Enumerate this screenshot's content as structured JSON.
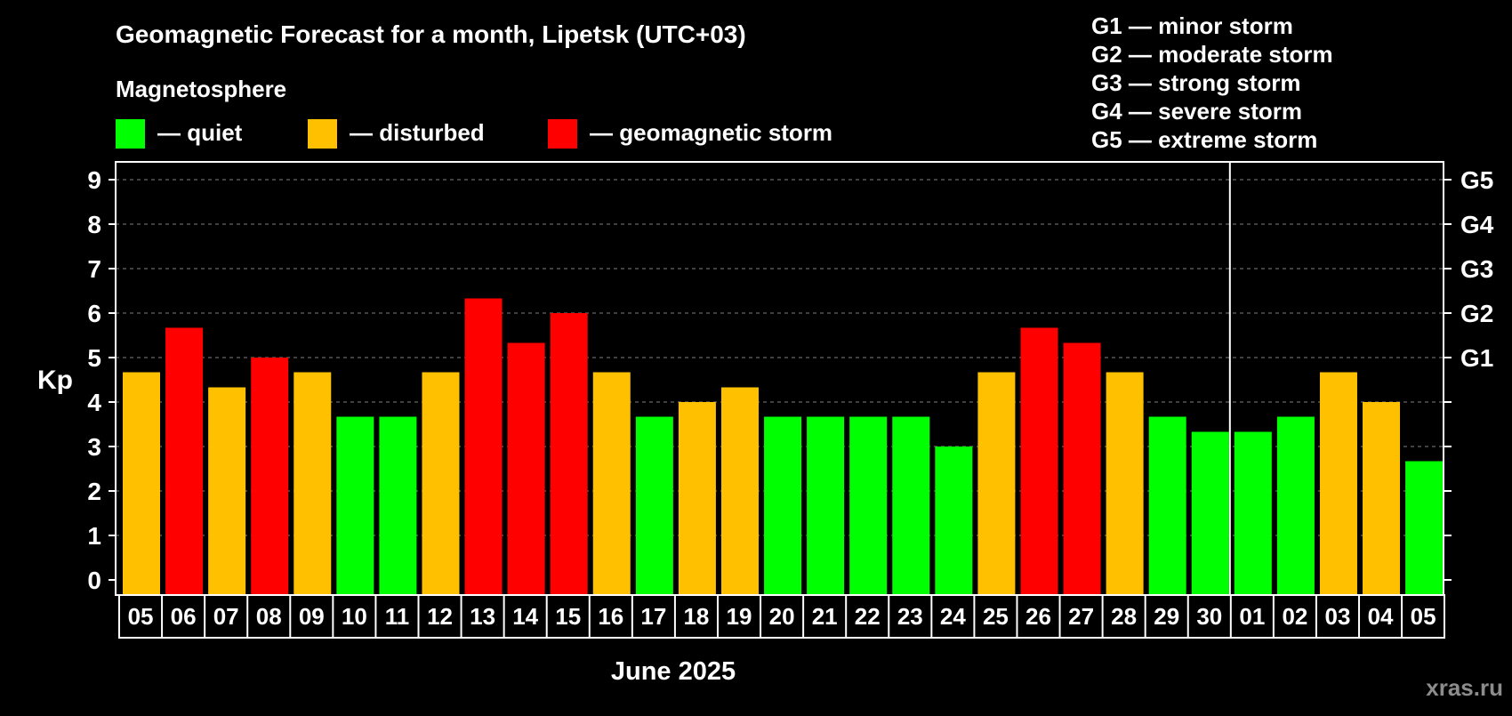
{
  "colors": {
    "background": "#000000",
    "quiet": "#00ff00",
    "disturbed": "#ffc000",
    "storm": "#ff0000",
    "text": "#ffffff",
    "grid": "#808080",
    "watermark": "#8c8c8c"
  },
  "chart_data": {
    "type": "bar",
    "title": "Geomagnetic Forecast for a month, Lipetsk (UTC+03)",
    "legend_title": "Magnetosphere",
    "legend": [
      {
        "label": "— quiet",
        "color": "#00ff00"
      },
      {
        "label": "— disturbed",
        "color": "#ffc000"
      },
      {
        "label": "— geomagnetic storm",
        "color": "#ff0000"
      }
    ],
    "scale_legend": [
      "G1 — minor storm",
      "G2 — moderate storm",
      "G3 — strong storm",
      "G4 — severe storm",
      "G5 — extreme storm"
    ],
    "ylabel": "Kp",
    "xlabel": "June 2025",
    "ylim": [
      0,
      9
    ],
    "yticks": [
      "0",
      "1",
      "2",
      "3",
      "4",
      "5",
      "6",
      "7",
      "8",
      "9"
    ],
    "right_ticks": [
      {
        "value": 5,
        "label": "G1"
      },
      {
        "value": 6,
        "label": "G2"
      },
      {
        "value": 7,
        "label": "G3"
      },
      {
        "value": 8,
        "label": "G4"
      },
      {
        "value": 9,
        "label": "G5"
      }
    ],
    "grid": "dashed horizontal",
    "month_separator_after": "30",
    "categories": [
      "05",
      "06",
      "07",
      "08",
      "09",
      "10",
      "11",
      "12",
      "13",
      "14",
      "15",
      "16",
      "17",
      "18",
      "19",
      "20",
      "21",
      "22",
      "23",
      "24",
      "25",
      "26",
      "27",
      "28",
      "29",
      "30",
      "01",
      "02",
      "03",
      "04",
      "05"
    ],
    "values": [
      4.67,
      5.67,
      4.33,
      5.0,
      4.67,
      3.67,
      3.67,
      4.67,
      6.33,
      5.33,
      6.0,
      4.67,
      3.67,
      4.0,
      4.33,
      3.67,
      3.67,
      3.67,
      3.67,
      3.0,
      4.67,
      5.67,
      5.33,
      4.67,
      3.67,
      3.33,
      3.33,
      3.67,
      4.67,
      4.0,
      2.67
    ],
    "levels": [
      "disturbed",
      "storm",
      "disturbed",
      "storm",
      "disturbed",
      "quiet",
      "quiet",
      "disturbed",
      "storm",
      "storm",
      "storm",
      "disturbed",
      "quiet",
      "disturbed",
      "disturbed",
      "quiet",
      "quiet",
      "quiet",
      "quiet",
      "quiet",
      "disturbed",
      "storm",
      "storm",
      "disturbed",
      "quiet",
      "quiet",
      "quiet",
      "quiet",
      "disturbed",
      "disturbed",
      "quiet"
    ]
  },
  "watermark": "xras.ru"
}
